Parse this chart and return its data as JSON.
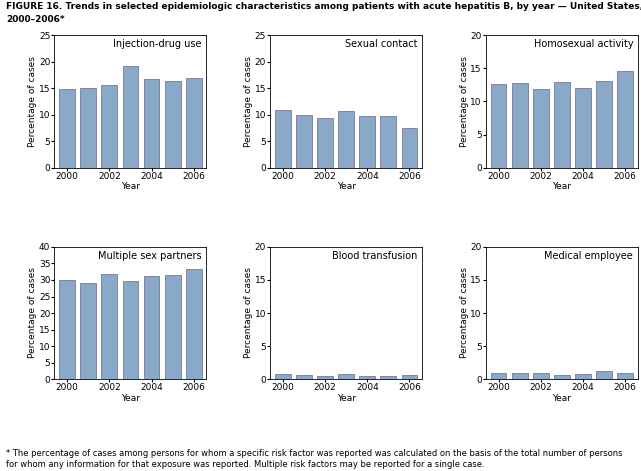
{
  "years": [
    2000,
    2001,
    2002,
    2003,
    2004,
    2005,
    2006
  ],
  "subplots": [
    {
      "title": "Injection-drug use",
      "values": [
        14.8,
        15.1,
        15.6,
        19.2,
        16.8,
        16.4,
        17.0
      ],
      "ylim": [
        0,
        25
      ],
      "yticks": [
        0,
        5,
        10,
        15,
        20,
        25
      ]
    },
    {
      "title": "Sexual contact",
      "values": [
        10.9,
        10.0,
        9.4,
        10.6,
        9.7,
        9.7,
        7.5
      ],
      "ylim": [
        0,
        25
      ],
      "yticks": [
        0,
        5,
        10,
        15,
        20,
        25
      ]
    },
    {
      "title": "Homosexual activity",
      "values": [
        12.6,
        12.8,
        11.9,
        13.0,
        12.1,
        13.1,
        14.6
      ],
      "ylim": [
        0,
        20
      ],
      "yticks": [
        0,
        5,
        10,
        15,
        20
      ]
    },
    {
      "title": "Multiple sex partners",
      "values": [
        30.1,
        29.2,
        31.7,
        29.7,
        31.2,
        31.6,
        33.3
      ],
      "ylim": [
        0,
        40
      ],
      "yticks": [
        0,
        5,
        10,
        15,
        20,
        25,
        30,
        35,
        40
      ]
    },
    {
      "title": "Blood transfusion",
      "values": [
        0.8,
        0.6,
        0.5,
        0.8,
        0.5,
        0.5,
        0.6
      ],
      "ylim": [
        0,
        20
      ],
      "yticks": [
        0,
        5,
        10,
        15,
        20
      ]
    },
    {
      "title": "Medical employee",
      "values": [
        0.9,
        1.0,
        0.9,
        0.6,
        0.8,
        1.3,
        0.9
      ],
      "ylim": [
        0,
        20
      ],
      "yticks": [
        0,
        5,
        10,
        15,
        20
      ]
    }
  ],
  "bar_color": "#8aa8c8",
  "bar_edge_color": "#666688",
  "xlabel": "Year",
  "ylabel": "Percentage of cases",
  "bar_width": 0.75,
  "title_line1": "FIGURE 16. Trends in selected epidemiologic characteristics among patients with acute hepatitis B, by year — United States,",
  "title_line2": "2000–2006*",
  "footnote": "* The percentage of cases among persons for whom a specific risk factor was reported was calculated on the basis of the total number of persons\nfor whom any information for that exposure was reported. Multiple risk factors may be reported for a single case.",
  "title_fontsize": 6.5,
  "footnote_fontsize": 6.0,
  "axis_label_fontsize": 6.5,
  "tick_fontsize": 6.5,
  "subplot_title_fontsize": 7.0
}
